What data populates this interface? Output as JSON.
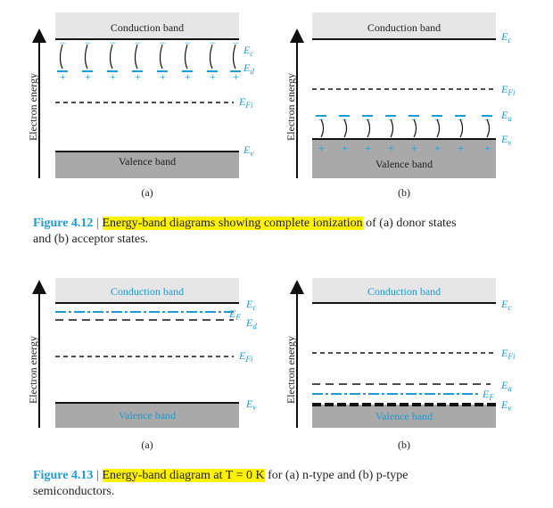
{
  "fig412": {
    "panel_a": {
      "conduction": "Conduction band",
      "valence": "Valence band",
      "ylabel": "Electron energy",
      "ec": "E",
      "ec_sub": "c",
      "ed": "E",
      "ed_sub": "d",
      "efi": "E",
      "efi_sub": "Fi",
      "ev": "E",
      "ev_sub": "v",
      "plus": "+",
      "minus": "−",
      "tag": "(a)"
    },
    "panel_b": {
      "conduction": "Conduction band",
      "valence": "Valence band",
      "ylabel": "Electron energy",
      "ec": "E",
      "ec_sub": "c",
      "efi": "E",
      "efi_sub": "Fi",
      "ea": "E",
      "ea_sub": "a",
      "ev": "E",
      "ev_sub": "v",
      "plus": "+",
      "minus": "−",
      "tag": "(b)"
    },
    "caption": {
      "label": "Figure 4.12 | ",
      "highlight": "Energy-band diagrams showing complete ionization",
      "rest1": " of (a) donor states",
      "line2": "and (b) acceptor states."
    }
  },
  "fig413": {
    "panel_a": {
      "conduction": "Conduction band",
      "valence": "Valence band",
      "ylabel": "Electron energy",
      "ec": "E",
      "ec_sub": "c",
      "ef": "E",
      "ef_sub": "F",
      "ed": "E",
      "ed_sub": "d",
      "efi": "E",
      "efi_sub": "Fi",
      "ev": "E",
      "ev_sub": "v",
      "tag": "(a)"
    },
    "panel_b": {
      "conduction": "Conduction band",
      "valence": "Valence band",
      "ylabel": "Electron energy",
      "ec": "E",
      "ec_sub": "c",
      "efi": "E",
      "efi_sub": "Fi",
      "ea": "E",
      "ea_sub": "a",
      "ef": "E",
      "ef_sub": "F",
      "ev": "E",
      "ev_sub": "v",
      "tag": "(b)"
    },
    "caption": {
      "label": "Figure 4.13 | ",
      "highlight": "Energy-band diagram at T = 0 K",
      "rest1": " for (a) n-type and (b) p-type",
      "line2": "semiconductors."
    }
  },
  "colors": {
    "accent": "#1e9ad6",
    "highlight": "#fff200",
    "conduction_fill": "#e6e6e6",
    "valence_fill": "#a9a9a9"
  }
}
